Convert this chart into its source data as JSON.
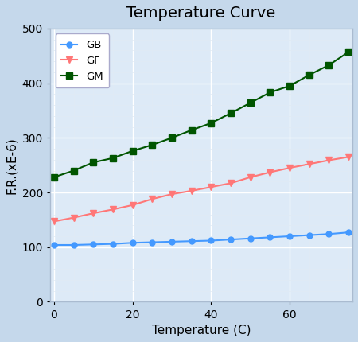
{
  "title": "Temperature Curve",
  "xlabel": "Temperature (C)",
  "ylabel": "F.R.(xE-6)",
  "xlim": [
    -1,
    76
  ],
  "ylim": [
    0,
    500
  ],
  "xticks": [
    0,
    20,
    40,
    60
  ],
  "yticks": [
    0,
    100,
    200,
    300,
    400,
    500
  ],
  "x_minor_ticks": 5,
  "y_minor_ticks": 20,
  "plot_bg_color": "#ddeaf7",
  "outer_bg_color": "#c5d8eb",
  "grid_major_color": "#ffffff",
  "grid_minor_color": "#e0eaf5",
  "series": [
    {
      "label": "GB",
      "color": "#4499ff",
      "marker": "o",
      "marker_size": 5,
      "linewidth": 1.5,
      "x": [
        0,
        5,
        10,
        15,
        20,
        25,
        30,
        35,
        40,
        45,
        50,
        55,
        60,
        65,
        70,
        75
      ],
      "y": [
        104,
        104,
        105,
        106,
        108,
        109,
        110,
        111,
        112,
        114,
        116,
        118,
        120,
        122,
        124,
        127
      ]
    },
    {
      "label": "GF",
      "color": "#ff7777",
      "marker": "v",
      "marker_size": 6,
      "linewidth": 1.5,
      "x": [
        0,
        5,
        10,
        15,
        20,
        25,
        30,
        35,
        40,
        45,
        50,
        55,
        60,
        65,
        70,
        75
      ],
      "y": [
        147,
        154,
        162,
        169,
        177,
        188,
        197,
        203,
        210,
        217,
        228,
        237,
        245,
        252,
        259,
        265
      ]
    },
    {
      "label": "GM",
      "color": "#005500",
      "marker": "s",
      "marker_size": 6,
      "linewidth": 1.5,
      "x": [
        0,
        5,
        10,
        15,
        20,
        25,
        30,
        35,
        40,
        45,
        50,
        55,
        60,
        65,
        70,
        75
      ],
      "y": [
        228,
        240,
        255,
        263,
        276,
        287,
        300,
        314,
        327,
        345,
        364,
        383,
        395,
        415,
        433,
        457
      ]
    }
  ],
  "legend_loc": "upper left",
  "title_fontsize": 14,
  "axis_label_fontsize": 11,
  "tick_fontsize": 10
}
